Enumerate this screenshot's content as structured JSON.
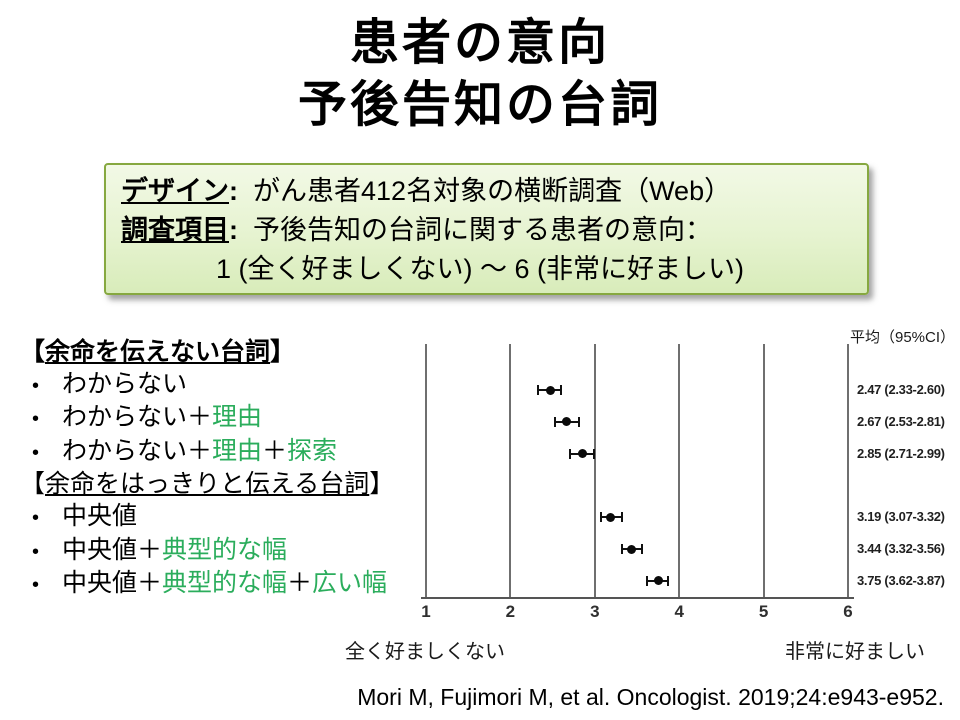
{
  "slide": {
    "title_line1": "患者の意向",
    "title_line2": "予後告知の台詞",
    "citation": "Mori M, Fujimori M, et al. Oncologist. 2019;24:e943-e952."
  },
  "design_box": {
    "colon": ":",
    "row1_label": "デザイン",
    "row1_text": "がん患者412名対象の横断調査（Web）",
    "row2_label": "調査項目",
    "row2_text": "予後告知の台詞に関する患者の意向：",
    "row3_text": "1 (全く好ましくない) ～ 6 (非常に好ましい)"
  },
  "phrase_list": {
    "bullet_char": "•",
    "green_color": "#2BAD5C",
    "items": [
      {
        "type": "header",
        "bold": true,
        "segments": [
          {
            "t": "【"
          },
          {
            "t": "余命を伝えない台詞",
            "u": true
          },
          {
            "t": "】"
          }
        ]
      },
      {
        "type": "bullet",
        "segments": [
          {
            "t": "わからない"
          }
        ]
      },
      {
        "type": "bullet",
        "segments": [
          {
            "t": "わからない＋"
          },
          {
            "t": "理由",
            "g": true
          }
        ]
      },
      {
        "type": "bullet",
        "segments": [
          {
            "t": "わからない＋"
          },
          {
            "t": "理由",
            "g": true
          },
          {
            "t": "＋"
          },
          {
            "t": "探索",
            "g": true
          }
        ]
      },
      {
        "type": "header",
        "bold": false,
        "segments": [
          {
            "t": "【"
          },
          {
            "t": "余命をはっきりと伝える台詞",
            "u": true
          },
          {
            "t": "】"
          }
        ]
      },
      {
        "type": "bullet",
        "segments": [
          {
            "t": "中央値"
          }
        ]
      },
      {
        "type": "bullet",
        "segments": [
          {
            "t": "中央値＋"
          },
          {
            "t": "典型的な幅",
            "g": true
          }
        ]
      },
      {
        "type": "bullet",
        "segments": [
          {
            "t": "中央値＋"
          },
          {
            "t": "典型的な幅",
            "g": true
          },
          {
            "t": "＋"
          },
          {
            "t": "広い幅",
            "g": true
          }
        ]
      }
    ]
  },
  "chart_data": {
    "type": "scatter",
    "subtype": "forest-plot-horizontal",
    "title": "平均（95%CI）",
    "xlim": [
      1,
      6
    ],
    "x_ticks": [
      1,
      2,
      3,
      4,
      5,
      6
    ],
    "grid": "vertical-lines-at-integers",
    "x_left_label": "全く好ましくない",
    "x_right_label": "非常に好ましい",
    "rows": [
      {
        "group": 0,
        "label": "わからない",
        "mean": 2.47,
        "lo": 2.33,
        "hi": 2.6,
        "display": "2.47 (2.33-2.60)"
      },
      {
        "group": 0,
        "label": "わからない＋理由",
        "mean": 2.67,
        "lo": 2.53,
        "hi": 2.81,
        "display": "2.67 (2.53-2.81)"
      },
      {
        "group": 0,
        "label": "わからない＋理由＋探索",
        "mean": 2.85,
        "lo": 2.71,
        "hi": 2.99,
        "display": "2.85 (2.71-2.99)"
      },
      {
        "group": 1,
        "label": "中央値",
        "mean": 3.19,
        "lo": 3.07,
        "hi": 3.32,
        "display": "3.19 (3.07-3.32)"
      },
      {
        "group": 1,
        "label": "中央値＋典型的な幅",
        "mean": 3.44,
        "lo": 3.32,
        "hi": 3.56,
        "display": "3.44 (3.32-3.56)"
      },
      {
        "group": 1,
        "label": "中央値＋典型的な幅＋広い幅",
        "mean": 3.75,
        "lo": 3.62,
        "hi": 3.87,
        "display": "3.75 (3.62-3.87)"
      }
    ]
  },
  "colors": {
    "accent_green_text": "#2BAD5C",
    "box_border_green": "#86A840",
    "box_bg_top": "#F2F9E6",
    "box_bg_bottom": "#D8ECBA",
    "gridline_gray": "#6F6F6F"
  }
}
